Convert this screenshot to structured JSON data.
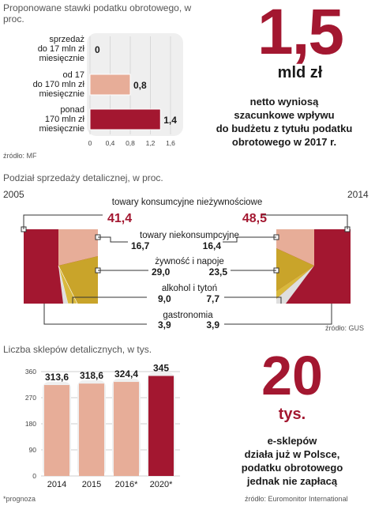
{
  "section1": {
    "header": "Proponowane stawki podatku obrotowego, w proc.",
    "source": "źródło: MF",
    "big_value": "1,5",
    "big_unit": "mld zł",
    "caption_lines": [
      "netto wyniosą",
      "szacunkowe wpływu",
      "do budżetu z tytułu podatku",
      "obrotowego w 2017 r."
    ]
  },
  "section2": {
    "header": "Podział sprzedaży detalicznej, w proc.",
    "year_left": "2005",
    "year_right": "2014",
    "source": "źródło: GUS"
  },
  "section3": {
    "header": "Liczba sklepów detalicznych, w tys.",
    "big_value": "20",
    "big_unit": "tys.",
    "caption_lines": [
      "e-sklepów",
      "działa już w Polsce,",
      "podatku obrotowego",
      "jednak nie zapłacą"
    ],
    "footnote": "*prognoza",
    "source": "źródło: Euromonitor International"
  },
  "chart_data": [
    {
      "type": "bar",
      "orientation": "horizontal",
      "title": "Proponowane stawki podatku obrotowego, w proc.",
      "categories": [
        [
          "sprzedaż",
          "do 17 mln zł",
          "miesięcznie"
        ],
        [
          "od 17",
          "do 170 mln zł",
          "miesięcznie"
        ],
        [
          "ponad",
          "170 mln zł",
          "miesięcznie"
        ]
      ],
      "values": [
        0,
        0.8,
        1.4
      ],
      "value_labels": [
        "0",
        "0,8",
        "1,4"
      ],
      "xlim": [
        0,
        1.6
      ],
      "xticks": [
        "0",
        "0,4",
        "0,8",
        "1,2",
        "1,6"
      ],
      "colors": [
        "#e7ad98",
        "#e7ad98",
        "#a31730"
      ],
      "grid": true
    },
    {
      "type": "pie",
      "title": "Podział sprzedaży detalicznej, w proc.",
      "categories": [
        "towary konsumcyjne nieżywnościowe",
        "towary niekonsumpcyjne",
        "żywność i napoje",
        "alkohol i tytoń",
        "gastronomia"
      ],
      "series": [
        {
          "name": "2005",
          "values": [
            41.4,
            16.7,
            29.0,
            9.0,
            3.9
          ],
          "labels": [
            "41,4",
            "16,7",
            "29,0",
            "9,0",
            "3,9"
          ]
        },
        {
          "name": "2014",
          "values": [
            48.5,
            16.4,
            23.5,
            7.7,
            3.9
          ],
          "labels": [
            "48,5",
            "16,4",
            "23,5",
            "7,7",
            "3,9"
          ]
        }
      ],
      "colors": [
        "#a31730",
        "#e7ad98",
        "#c9a42a",
        "#d9b93d",
        "#dfdfdf"
      ]
    },
    {
      "type": "bar",
      "title": "Liczba sklepów detalicznych, w tys.",
      "categories": [
        "2014",
        "2015",
        "2016*",
        "2020*"
      ],
      "values": [
        313.6,
        318.6,
        324.4,
        345
      ],
      "value_labels": [
        "313,6",
        "318,6",
        "324,4",
        "345"
      ],
      "ylim": [
        0,
        360
      ],
      "yticks": [
        "0",
        "90",
        "180",
        "270",
        "360"
      ],
      "colors": [
        "#e7ad98",
        "#e7ad98",
        "#e7ad98",
        "#a31730"
      ],
      "grid": true
    }
  ]
}
